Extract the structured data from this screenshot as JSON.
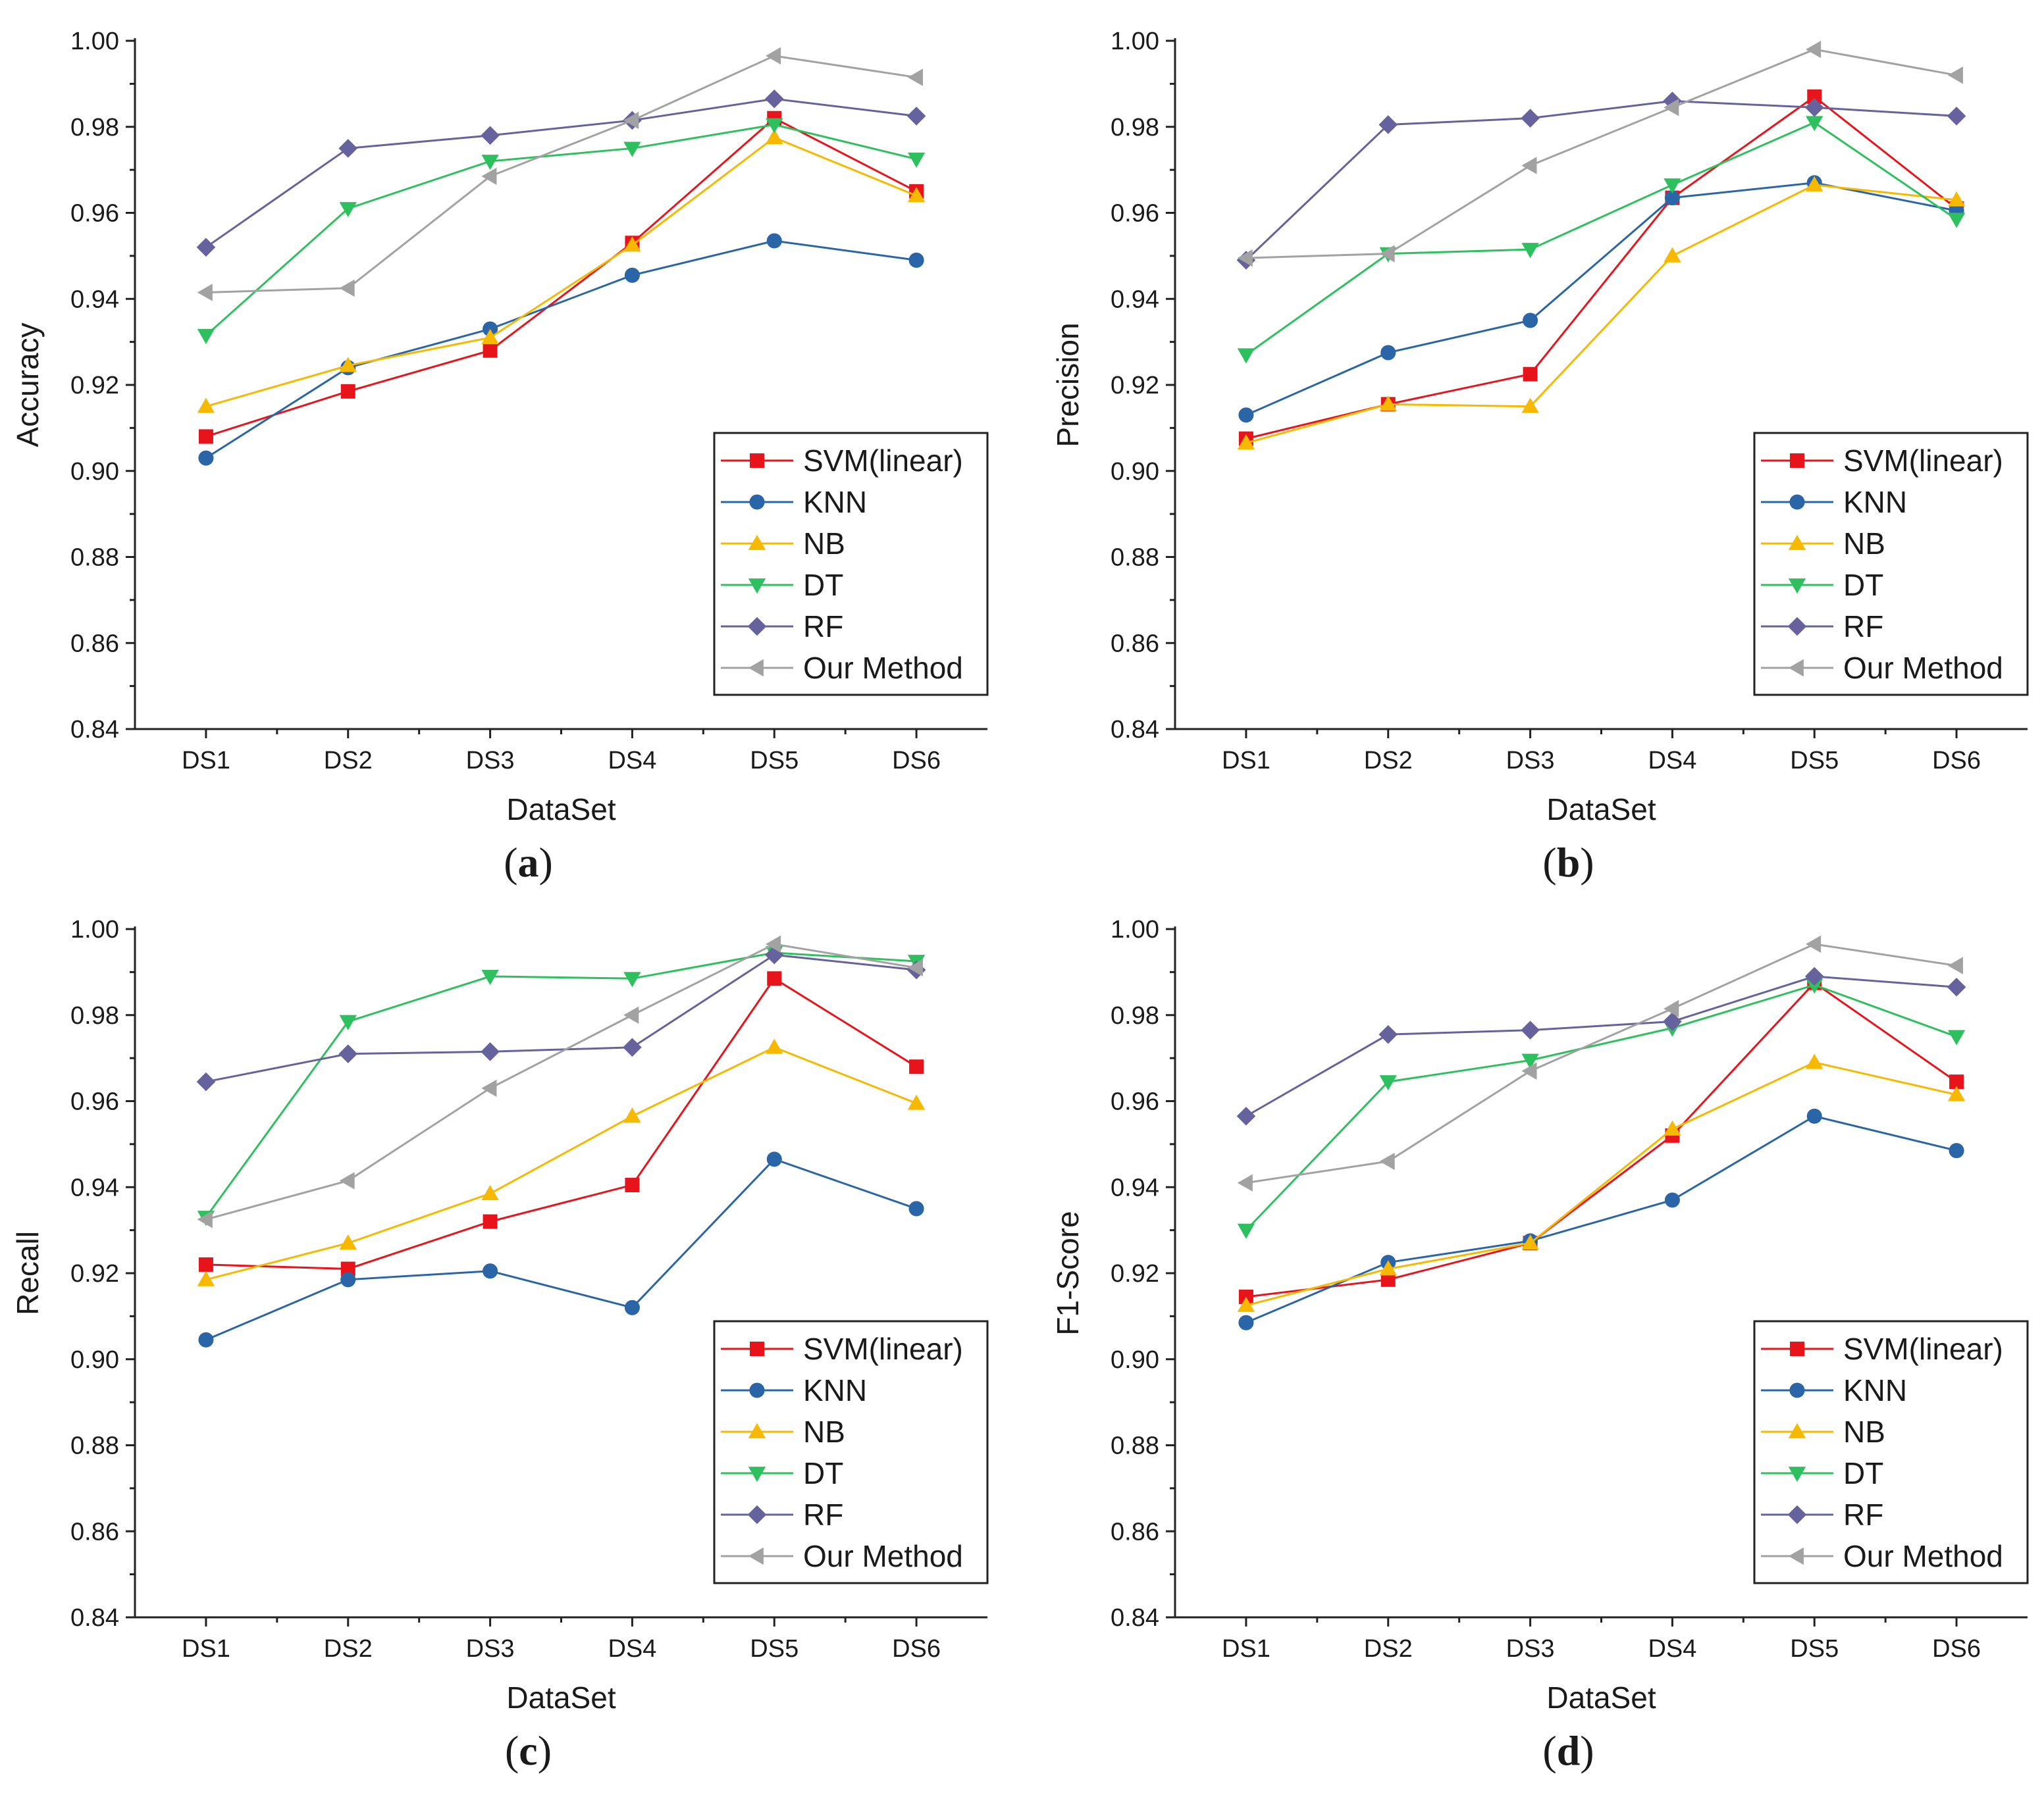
{
  "figure": {
    "styles": {
      "SVM(linear)": {
        "color": "#e8141c",
        "marker": "square"
      },
      "KNN": {
        "color": "#2a65a8",
        "marker": "circle"
      },
      "NB": {
        "color": "#f7b800",
        "marker": "triangle-up"
      },
      "DT": {
        "color": "#2ec05e",
        "marker": "triangle-down"
      },
      "RF": {
        "color": "#66629e",
        "marker": "diamond"
      },
      "Our Method": {
        "color": "#a2a2a2",
        "marker": "triangle-left"
      }
    }
  },
  "chart_data": [
    {
      "type": "line",
      "panel": "(a)",
      "panel_open": "(",
      "panel_letter": "a",
      "panel_close": ")",
      "title": "",
      "xlabel": "DataSet",
      "ylabel": "Accuracy",
      "categories": [
        "DS1",
        "DS2",
        "DS3",
        "DS4",
        "DS5",
        "DS6"
      ],
      "ylim": [
        0.84,
        1.0
      ],
      "yticks": [
        "0.84",
        "0.86",
        "0.88",
        "0.90",
        "0.92",
        "0.94",
        "0.96",
        "0.98",
        "1.00"
      ],
      "legend_position": "bottom-right",
      "series": [
        {
          "name": "SVM(linear)",
          "values": [
            0.908,
            0.9185,
            0.928,
            0.953,
            0.982,
            0.965
          ]
        },
        {
          "name": "KNN",
          "values": [
            0.903,
            0.924,
            0.933,
            0.9455,
            0.9535,
            0.949
          ]
        },
        {
          "name": "NB",
          "values": [
            0.915,
            0.9245,
            0.931,
            0.9525,
            0.9775,
            0.964
          ]
        },
        {
          "name": "DT",
          "values": [
            0.9315,
            0.961,
            0.972,
            0.975,
            0.9805,
            0.9725
          ]
        },
        {
          "name": "RF",
          "values": [
            0.952,
            0.975,
            0.978,
            0.9815,
            0.9865,
            0.9825
          ]
        },
        {
          "name": "Our Method",
          "values": [
            0.9415,
            0.9425,
            0.9685,
            0.9815,
            0.9965,
            0.9915
          ]
        }
      ]
    },
    {
      "type": "line",
      "panel": "(b)",
      "panel_open": "(",
      "panel_letter": "b",
      "panel_close": ")",
      "title": "",
      "xlabel": "DataSet",
      "ylabel": "Precision",
      "categories": [
        "DS1",
        "DS2",
        "DS3",
        "DS4",
        "DS5",
        "DS6"
      ],
      "ylim": [
        0.84,
        1.0
      ],
      "yticks": [
        "0.84",
        "0.86",
        "0.88",
        "0.90",
        "0.92",
        "0.94",
        "0.96",
        "0.98",
        "1.00"
      ],
      "legend_position": "bottom-right",
      "series": [
        {
          "name": "SVM(linear)",
          "values": [
            0.9075,
            0.9155,
            0.9225,
            0.9635,
            0.987,
            0.961
          ]
        },
        {
          "name": "KNN",
          "values": [
            0.913,
            0.9275,
            0.935,
            0.9635,
            0.967,
            0.9605
          ]
        },
        {
          "name": "NB",
          "values": [
            0.9065,
            0.9155,
            0.915,
            0.95,
            0.9665,
            0.963
          ]
        },
        {
          "name": "DT",
          "values": [
            0.927,
            0.9505,
            0.9515,
            0.9665,
            0.981,
            0.9585
          ]
        },
        {
          "name": "RF",
          "values": [
            0.949,
            0.9805,
            0.982,
            0.986,
            0.9845,
            0.9825
          ]
        },
        {
          "name": "Our Method",
          "values": [
            0.9495,
            0.9505,
            0.971,
            0.9845,
            0.998,
            0.992
          ]
        }
      ]
    },
    {
      "type": "line",
      "panel": "(c)",
      "panel_open": "(",
      "panel_letter": "c",
      "panel_close": ")",
      "title": "",
      "xlabel": "DataSet",
      "ylabel": "Recall",
      "categories": [
        "DS1",
        "DS2",
        "DS3",
        "DS4",
        "DS5",
        "DS6"
      ],
      "ylim": [
        0.84,
        1.0
      ],
      "yticks": [
        "0.84",
        "0.86",
        "0.88",
        "0.90",
        "0.92",
        "0.94",
        "0.96",
        "0.98",
        "1.00"
      ],
      "legend_position": "bottom-right",
      "series": [
        {
          "name": "SVM(linear)",
          "values": [
            0.922,
            0.921,
            0.932,
            0.9405,
            0.9885,
            0.968
          ]
        },
        {
          "name": "KNN",
          "values": [
            0.9045,
            0.9185,
            0.9205,
            0.912,
            0.9465,
            0.935
          ]
        },
        {
          "name": "NB",
          "values": [
            0.9185,
            0.927,
            0.9385,
            0.9565,
            0.9725,
            0.9595
          ]
        },
        {
          "name": "DT",
          "values": [
            0.933,
            0.9785,
            0.989,
            0.9885,
            0.9945,
            0.9925
          ]
        },
        {
          "name": "RF",
          "values": [
            0.9645,
            0.971,
            0.9715,
            0.9725,
            0.994,
            0.9905
          ]
        },
        {
          "name": "Our Method",
          "values": [
            0.9325,
            0.9415,
            0.963,
            0.98,
            0.9965,
            0.991
          ]
        }
      ]
    },
    {
      "type": "line",
      "panel": "(d)",
      "panel_open": "(",
      "panel_letter": "d",
      "panel_close": ")",
      "title": "",
      "xlabel": "DataSet",
      "ylabel": "F1-Score",
      "categories": [
        "DS1",
        "DS2",
        "DS3",
        "DS4",
        "DS5",
        "DS6"
      ],
      "ylim": [
        0.84,
        1.0
      ],
      "yticks": [
        "0.84",
        "0.86",
        "0.88",
        "0.90",
        "0.92",
        "0.94",
        "0.96",
        "0.98",
        "1.00"
      ],
      "legend_position": "bottom-right",
      "series": [
        {
          "name": "SVM(linear)",
          "values": [
            0.9145,
            0.9185,
            0.927,
            0.952,
            0.9875,
            0.9645
          ]
        },
        {
          "name": "KNN",
          "values": [
            0.9085,
            0.9225,
            0.9275,
            0.937,
            0.9565,
            0.9485
          ]
        },
        {
          "name": "NB",
          "values": [
            0.9125,
            0.921,
            0.927,
            0.9535,
            0.969,
            0.9615
          ]
        },
        {
          "name": "DT",
          "values": [
            0.93,
            0.9645,
            0.9695,
            0.977,
            0.987,
            0.975
          ]
        },
        {
          "name": "RF",
          "values": [
            0.9565,
            0.9755,
            0.9765,
            0.9785,
            0.989,
            0.9865
          ]
        },
        {
          "name": "Our Method",
          "values": [
            0.941,
            0.946,
            0.967,
            0.9815,
            0.9965,
            0.9915
          ]
        }
      ]
    }
  ]
}
